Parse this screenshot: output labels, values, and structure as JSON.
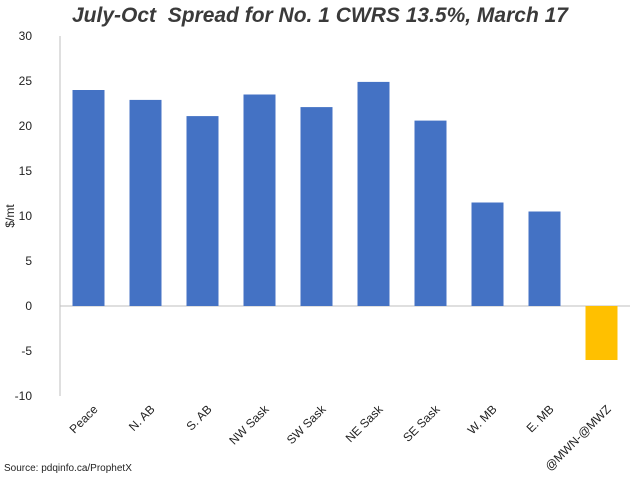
{
  "chart_data": {
    "type": "bar",
    "title": "July-Oct  Spread for No. 1 CWRS 13.5%, March 17",
    "xlabel": "",
    "ylabel": "$/mt",
    "ylim": [
      -10,
      30
    ],
    "yticks": [
      30,
      25,
      20,
      15,
      10,
      5,
      0,
      -5,
      -10
    ],
    "categories": [
      "Peace",
      "N. AB",
      "S. AB",
      "NW Sask",
      "SW Sask",
      "NE Sask",
      "SE Sask",
      "W. MB",
      "E. MB",
      "@MWN-@MWZ"
    ],
    "values": [
      24.0,
      22.9,
      21.1,
      23.5,
      22.1,
      24.9,
      20.6,
      11.5,
      10.5,
      -6.0
    ],
    "colors": {
      "default_bar": "#4472c4",
      "highlight_bar": "#ffc000",
      "highlight_index": 9
    },
    "grid": false,
    "legend": "none"
  },
  "source": "Source: pdqinfo.ca/ProphetX"
}
